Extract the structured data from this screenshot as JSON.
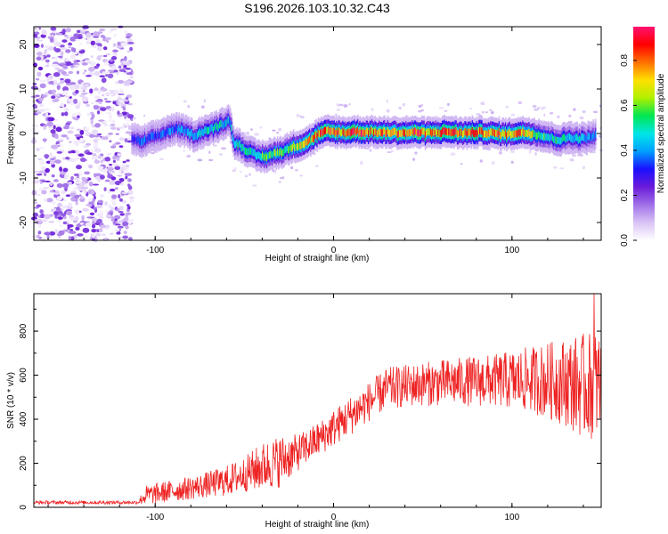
{
  "title": "S196.2026.103.10.32.C43",
  "chart_data": [
    {
      "type": "heatmap",
      "name": "spectrogram",
      "xlabel": "Height of straight line (km)",
      "ylabel": "Frequency (Hz)",
      "xlim": [
        -168,
        150
      ],
      "ylim": [
        -24,
        24
      ],
      "xticks": [
        -100,
        0,
        100
      ],
      "yticks": [
        -20,
        -10,
        0,
        10,
        20
      ],
      "colorbar": {
        "label": "Normalized spectral amplitude",
        "range": [
          0,
          0.95
        ],
        "ticks": [
          "0.0",
          "0.2",
          "0.4",
          "0.6",
          "0.8"
        ],
        "tick_values": [
          0,
          0.2,
          0.4,
          0.6,
          0.8
        ],
        "colors": [
          "#ffffff",
          "#d9c3f5",
          "#a070e8",
          "#6a1bd9",
          "#1a10ff",
          "#00a0ff",
          "#00e6e6",
          "#00e650",
          "#b0f000",
          "#ffe000",
          "#ff7000",
          "#ff0000",
          "#ff1070"
        ]
      },
      "noise_region_x": [
        -168,
        -113
      ],
      "ridge": {
        "x": [
          -113,
          -108,
          -103,
          -98,
          -93,
          -88,
          -83,
          -78,
          -73,
          -68,
          -63,
          -58,
          -56,
          -53,
          -48,
          -43,
          -38,
          -33,
          -28,
          -23,
          -18,
          -13,
          -8,
          -3,
          2,
          7,
          12,
          17,
          22,
          27,
          32,
          37,
          42,
          47,
          52,
          57,
          62,
          67,
          72,
          77,
          82,
          87,
          92,
          97,
          102,
          107,
          112,
          117,
          122,
          127,
          132,
          137,
          142,
          147
        ],
        "y": [
          -1,
          -2,
          -1,
          -0.5,
          0.5,
          1,
          0.5,
          -0.5,
          0.5,
          1,
          2,
          3,
          -2,
          -2.5,
          -4,
          -5,
          -5.2,
          -4.5,
          -4,
          -3,
          -2.5,
          -1.5,
          0,
          0.5,
          0.3,
          0.2,
          0.5,
          0.3,
          0.4,
          0.2,
          0.3,
          0.1,
          0.2,
          0.3,
          0.1,
          0.2,
          0.4,
          0.3,
          0.1,
          0.2,
          0.3,
          0.1,
          0,
          -0.2,
          0.1,
          0.2,
          0,
          -0.5,
          -1,
          -1.5,
          -0.8,
          -1.2,
          -1,
          -0.5
        ],
        "amplitude": [
          0.3,
          0.4,
          0.35,
          0.35,
          0.4,
          0.4,
          0.45,
          0.45,
          0.5,
          0.5,
          0.5,
          0.45,
          0.5,
          0.55,
          0.5,
          0.55,
          0.6,
          0.65,
          0.6,
          0.65,
          0.7,
          0.75,
          0.85,
          0.9,
          0.85,
          0.8,
          0.9,
          0.85,
          0.8,
          0.85,
          0.9,
          0.85,
          0.8,
          0.9,
          0.85,
          0.8,
          0.85,
          0.9,
          0.8,
          0.85,
          0.9,
          0.8,
          0.85,
          0.8,
          0.85,
          0.8,
          0.7,
          0.6,
          0.5,
          0.55,
          0.5,
          0.5,
          0.45,
          0.45
        ]
      }
    },
    {
      "type": "line",
      "name": "snr",
      "xlabel": "Height of straight line (km)",
      "ylabel": "SNR (10 * v/v)",
      "xlim": [
        -168,
        150
      ],
      "ylim": [
        0,
        970
      ],
      "xticks": [
        -100,
        0,
        100
      ],
      "yticks": [
        0,
        200,
        400,
        600,
        800
      ],
      "color": "#ee2222",
      "envelope": {
        "x": [
          -168,
          -110,
          -105,
          -90,
          -75,
          -60,
          -50,
          -40,
          -30,
          -22,
          -18,
          -10,
          -5,
          0,
          5,
          10,
          20,
          30,
          50,
          70,
          90,
          110,
          130,
          140,
          150
        ],
        "base": [
          22,
          22,
          55,
          75,
          95,
          120,
          150,
          185,
          210,
          240,
          260,
          300,
          330,
          360,
          390,
          420,
          480,
          540,
          560,
          570,
          575,
          580,
          570,
          550,
          560
        ],
        "spread": [
          8,
          8,
          45,
          50,
          55,
          70,
          80,
          110,
          120,
          90,
          80,
          80,
          80,
          85,
          85,
          90,
          90,
          95,
          100,
          110,
          120,
          150,
          200,
          240,
          250
        ]
      },
      "peak": {
        "x": 146,
        "y": 970
      }
    }
  ]
}
